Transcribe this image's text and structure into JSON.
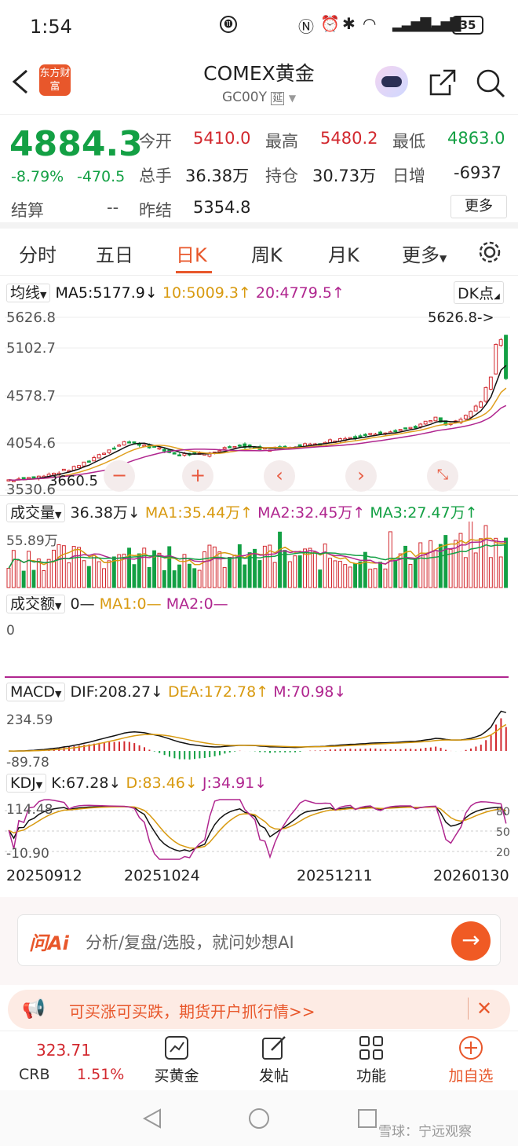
{
  "status": {
    "time": "1:54",
    "battery": "35"
  },
  "nav": {
    "logo_text": "东方财富",
    "title": "COMEX黄金",
    "code": "GC00Y",
    "delay_badge": "延"
  },
  "quote": {
    "price": "4884.3",
    "pct": "-8.79%",
    "chg": "-470.5",
    "open_label": "今开",
    "open": "5410.0",
    "high_label": "最高",
    "high": "5480.2",
    "low_label": "最低",
    "low": "4863.0",
    "vol_label": "总手",
    "vol": "36.38万",
    "oi_label": "持仓",
    "oi": "30.73万",
    "oi_chg_label": "日增",
    "oi_chg": "-6937",
    "settle_label": "结算",
    "settle": "--",
    "prev_label": "昨结",
    "prev": "5354.8",
    "more": "更多"
  },
  "tabs": [
    "分时",
    "五日",
    "日K",
    "周K",
    "月K",
    "更多"
  ],
  "ma_bar": {
    "select": "均线",
    "ma5": "MA5:5177.9↓",
    "ma10": "10:5009.3↑",
    "ma20": "20:4779.5↑",
    "dk": "DK点"
  },
  "kchart": {
    "y_labels": [
      "5626.8",
      "5102.7",
      "4578.7",
      "4054.6"
    ],
    "y_bottom": "3530.6",
    "max_label": "5626.8->",
    "min_label": "3660.5"
  },
  "vol_bar": {
    "select": "成交量",
    "val": "36.38万↓",
    "ma1": "MA1:35.44万↑",
    "ma2": "MA2:32.45万↑",
    "ma3": "MA3:27.47万↑",
    "max": "55.89万"
  },
  "amt_bar": {
    "select": "成交额",
    "val": "0—",
    "ma1": "MA1:0—",
    "ma2": "MA2:0—",
    "zero": "0"
  },
  "macd_bar": {
    "select": "MACD",
    "dif": "DIF:208.27↓",
    "dea": "DEA:172.78↑",
    "m": "M:70.98↓",
    "top": "234.59",
    "bottom": "-89.78"
  },
  "kdj_bar": {
    "select": "KDJ",
    "k": "K:67.28↓",
    "d": "D:83.46↓",
    "j": "J:34.91↓",
    "top": "114.48",
    "bottom": "-10.90",
    "r1": "80",
    "r2": "50",
    "r3": "20"
  },
  "dates": [
    "20250912",
    "20251024",
    "20251211",
    "20260130"
  ],
  "ai": {
    "logo": "问Ai",
    "placeholder": "分析/复盘/选股，就问妙想AI"
  },
  "promo": {
    "text": "可买涨可买跌，期货开户抓行情>>"
  },
  "bottom": {
    "crb_value": "323.71",
    "crb_label": "CRB",
    "crb_pct": "1.51%",
    "buy_gold": "买黄金",
    "post": "发帖",
    "func": "功能",
    "add": "加自选"
  },
  "watermark": "雪球：宁远观察",
  "colors": {
    "up": "#d2282e",
    "down": "#13a044",
    "accent": "#e8572b",
    "ma5": "#111111",
    "ma10": "#e0a020",
    "ma20": "#b0268f"
  }
}
